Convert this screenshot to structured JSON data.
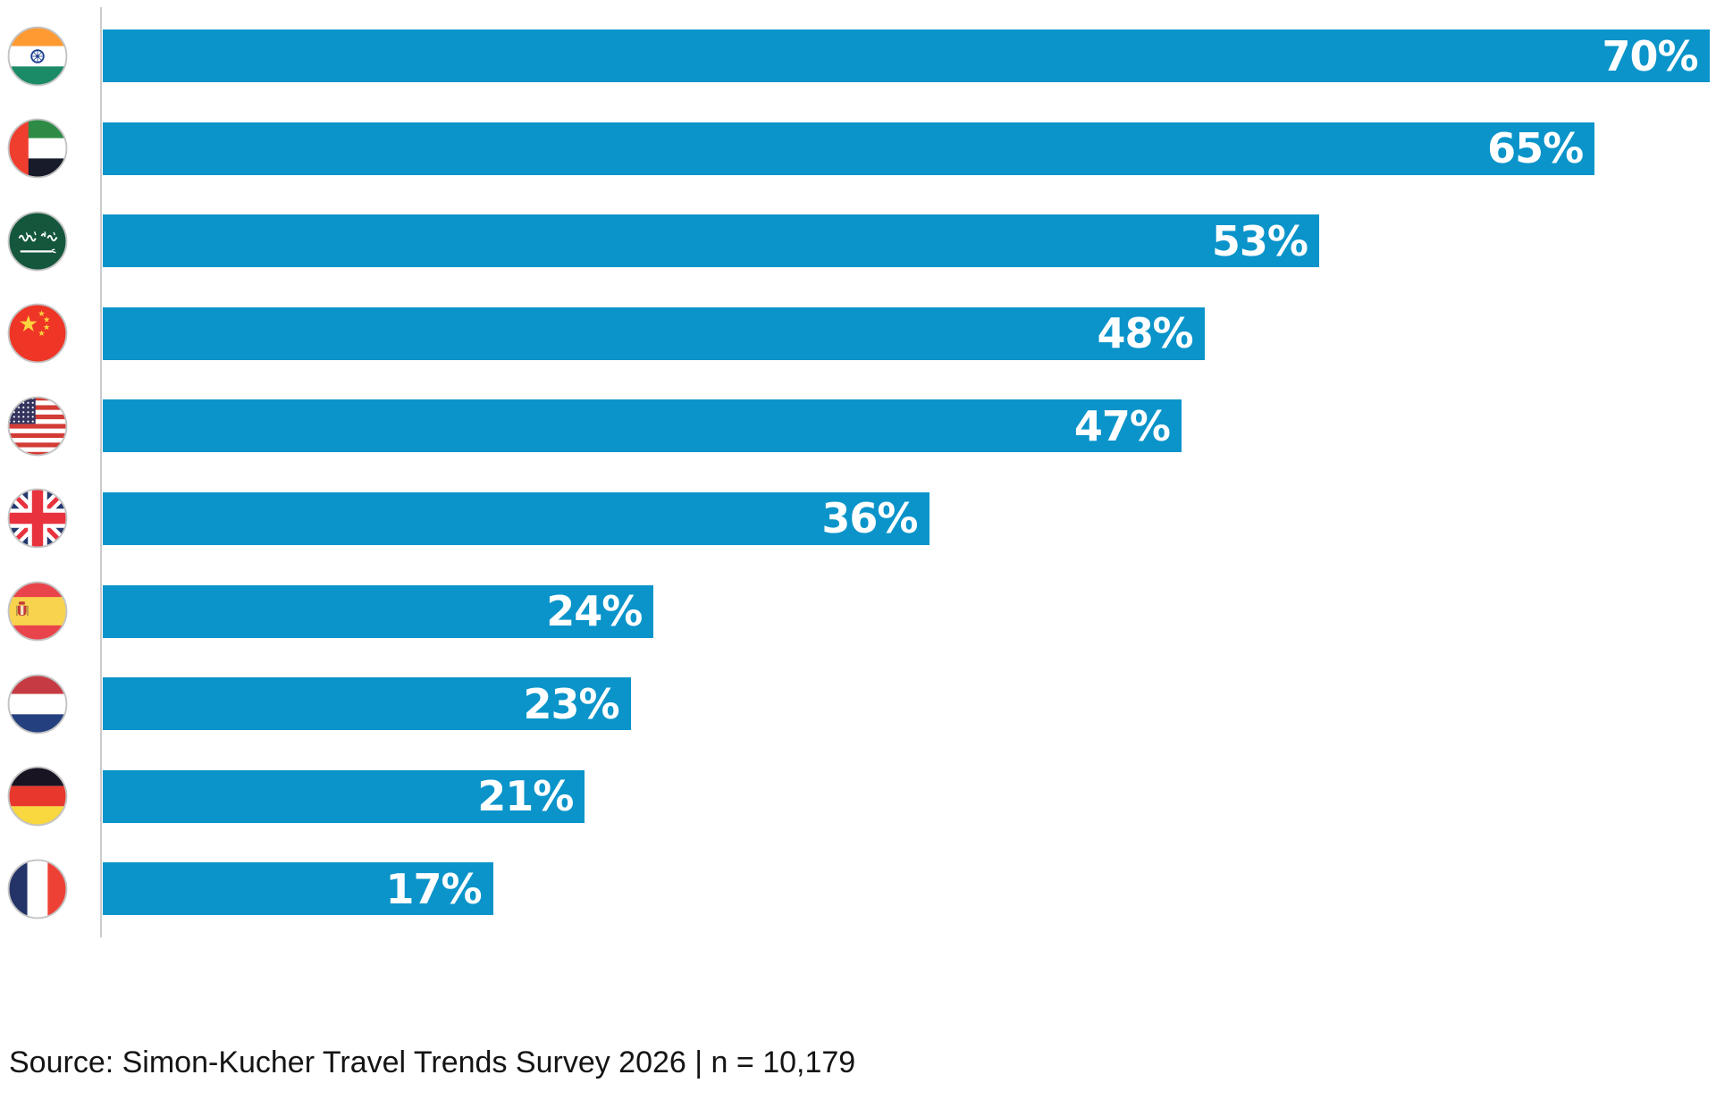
{
  "chart_data": {
    "type": "bar",
    "orientation": "horizontal",
    "title": "",
    "xlabel": "",
    "ylabel": "",
    "xlim": [
      0,
      70
    ],
    "grid": false,
    "bar_color": "#0a94ca",
    "value_label_color": "#ffffff",
    "axis_line_color": "#cbcbcb",
    "categories": [
      "India",
      "United Arab Emirates",
      "Saudi Arabia",
      "China",
      "United States",
      "United Kingdom",
      "Spain",
      "Netherlands",
      "Germany",
      "France"
    ],
    "values": [
      70,
      65,
      53,
      48,
      47,
      36,
      24,
      23,
      21,
      17
    ],
    "value_labels": [
      "70%",
      "65%",
      "53%",
      "48%",
      "47%",
      "36%",
      "24%",
      "23%",
      "21%",
      "17%"
    ],
    "flag_icons": [
      "india-flag-icon",
      "uae-flag-icon",
      "saudi-arabia-flag-icon",
      "china-flag-icon",
      "usa-flag-icon",
      "uk-flag-icon",
      "spain-flag-icon",
      "netherlands-flag-icon",
      "germany-flag-icon",
      "france-flag-icon"
    ],
    "source_note": "Source: Simon-Kucher Travel Trends Survey 2026 | n = 10,179"
  }
}
